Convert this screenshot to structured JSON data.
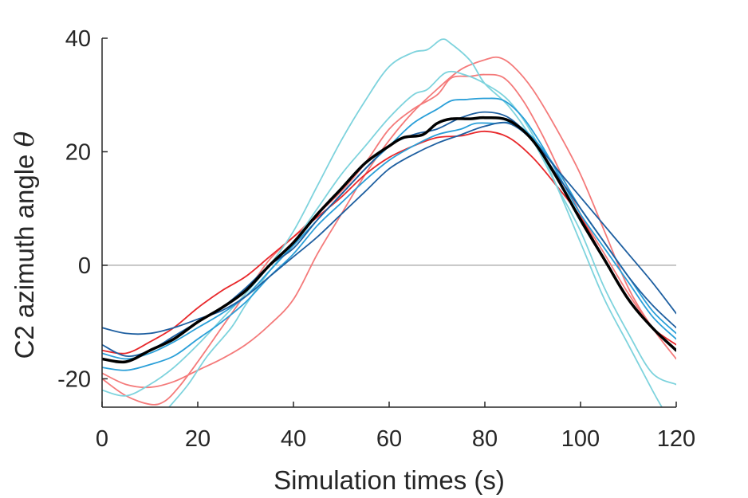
{
  "chart_data": {
    "type": "line",
    "xlabel": "Simulation times (s)",
    "ylabel": "C2 azimuth angle ",
    "ylabel_symbol": "θ",
    "xlim": [
      0,
      120
    ],
    "ylim": [
      -25,
      40
    ],
    "xticks": [
      0,
      20,
      40,
      60,
      80,
      100,
      120
    ],
    "yticks": [
      -20,
      0,
      20,
      40
    ],
    "xtick_labels": [
      "0",
      "20",
      "40",
      "60",
      "80",
      "100",
      "120"
    ],
    "ytick_labels": [
      "-20",
      "0",
      "20",
      "40"
    ],
    "grid": false,
    "zero_line": true,
    "colors": {
      "red": "#e8282b",
      "light_red": "#f47a7a",
      "cyan": "#7ed3dd",
      "blue": "#2a9fd8",
      "dark_blue": "#1e5fa0",
      "mean": "#000000",
      "zero_line": "#b3b3b3",
      "axis": "#262626"
    },
    "series": [
      {
        "color": "#f47a7a",
        "width": 1.8,
        "points": [
          [
            0,
            -19
          ],
          [
            5,
            -21
          ],
          [
            10,
            -21.5
          ],
          [
            15,
            -20.5
          ],
          [
            20,
            -18.5
          ],
          [
            25,
            -16.5
          ],
          [
            30,
            -14
          ],
          [
            35,
            -10.5
          ],
          [
            40,
            -6
          ],
          [
            45,
            2
          ],
          [
            50,
            9
          ],
          [
            55,
            16
          ],
          [
            60,
            22
          ],
          [
            65,
            27
          ],
          [
            70,
            31
          ],
          [
            75,
            34.5
          ],
          [
            80,
            36.2
          ],
          [
            83,
            36.6
          ],
          [
            86,
            35
          ],
          [
            90,
            31
          ],
          [
            95,
            24
          ],
          [
            100,
            16
          ],
          [
            105,
            6
          ],
          [
            110,
            -4
          ],
          [
            115,
            -11
          ],
          [
            120,
            -16.5
          ]
        ]
      },
      {
        "color": "#f47a7a",
        "width": 1.8,
        "points": [
          [
            0,
            -20
          ],
          [
            5,
            -23
          ],
          [
            10,
            -24.5
          ],
          [
            13,
            -24
          ],
          [
            16,
            -21.5
          ],
          [
            20,
            -17
          ],
          [
            25,
            -11
          ],
          [
            30,
            -5
          ],
          [
            35,
            1
          ],
          [
            40,
            5
          ],
          [
            45,
            9
          ],
          [
            50,
            13
          ],
          [
            55,
            18
          ],
          [
            60,
            24
          ],
          [
            65,
            27.5
          ],
          [
            70,
            30
          ],
          [
            73,
            33
          ],
          [
            77,
            33.3
          ],
          [
            80,
            33.6
          ],
          [
            84,
            33
          ],
          [
            88,
            29
          ],
          [
            92,
            23
          ],
          [
            96,
            16
          ],
          [
            100,
            9
          ],
          [
            105,
            2
          ],
          [
            110,
            -5
          ],
          [
            115,
            -11
          ],
          [
            120,
            -15
          ]
        ]
      },
      {
        "color": "#e8282b",
        "width": 1.8,
        "points": [
          [
            0,
            -15
          ],
          [
            5,
            -15.5
          ],
          [
            10,
            -13.5
          ],
          [
            15,
            -11
          ],
          [
            20,
            -7.5
          ],
          [
            25,
            -4.5
          ],
          [
            30,
            -2
          ],
          [
            35,
            1.5
          ],
          [
            40,
            5
          ],
          [
            45,
            8.5
          ],
          [
            50,
            12
          ],
          [
            55,
            16
          ],
          [
            60,
            19
          ],
          [
            65,
            21
          ],
          [
            70,
            22.5
          ],
          [
            75,
            22.8
          ],
          [
            80,
            23.6
          ],
          [
            85,
            22.5
          ],
          [
            90,
            19
          ],
          [
            95,
            14
          ],
          [
            100,
            8.5
          ],
          [
            105,
            1
          ],
          [
            110,
            -6
          ],
          [
            115,
            -11
          ],
          [
            120,
            -14
          ]
        ]
      },
      {
        "color": "#7ed3dd",
        "width": 1.8,
        "points": [
          [
            0,
            -22
          ],
          [
            5,
            -23
          ],
          [
            10,
            -21
          ],
          [
            15,
            -18
          ],
          [
            20,
            -14
          ],
          [
            25,
            -9.5
          ],
          [
            30,
            -5
          ],
          [
            35,
            0
          ],
          [
            40,
            6
          ],
          [
            45,
            14
          ],
          [
            50,
            22
          ],
          [
            55,
            29
          ],
          [
            60,
            35
          ],
          [
            65,
            37.5
          ],
          [
            68,
            38
          ],
          [
            71,
            39.8
          ],
          [
            73,
            39
          ],
          [
            77,
            36
          ],
          [
            80,
            32
          ],
          [
            85,
            28
          ],
          [
            90,
            22
          ],
          [
            95,
            14
          ],
          [
            100,
            6
          ],
          [
            105,
            -4
          ],
          [
            110,
            -12
          ],
          [
            115,
            -19
          ],
          [
            120,
            -21
          ]
        ]
      },
      {
        "color": "#7ed3dd",
        "width": 1.8,
        "points": [
          [
            14,
            -25
          ],
          [
            18,
            -21
          ],
          [
            22,
            -16
          ],
          [
            27,
            -11
          ],
          [
            30,
            -7
          ],
          [
            35,
            -1
          ],
          [
            40,
            4
          ],
          [
            45,
            10
          ],
          [
            50,
            16
          ],
          [
            55,
            21
          ],
          [
            60,
            26
          ],
          [
            65,
            30
          ],
          [
            68,
            31
          ],
          [
            72,
            34
          ],
          [
            76,
            33.5
          ],
          [
            80,
            32
          ],
          [
            85,
            29
          ],
          [
            90,
            23
          ],
          [
            95,
            14
          ],
          [
            100,
            4
          ],
          [
            105,
            -6
          ],
          [
            110,
            -14
          ],
          [
            115,
            -22
          ],
          [
            117,
            -25
          ]
        ]
      },
      {
        "color": "#2a9fd8",
        "width": 1.8,
        "points": [
          [
            0,
            -15.5
          ],
          [
            5,
            -16.5
          ],
          [
            10,
            -15.5
          ],
          [
            15,
            -13.5
          ],
          [
            20,
            -11
          ],
          [
            25,
            -8.5
          ],
          [
            30,
            -5.5
          ],
          [
            35,
            -1
          ],
          [
            40,
            3.5
          ],
          [
            45,
            8
          ],
          [
            50,
            12.5
          ],
          [
            55,
            17
          ],
          [
            60,
            21
          ],
          [
            65,
            25
          ],
          [
            70,
            27.5
          ],
          [
            73,
            29
          ],
          [
            76,
            29.2
          ],
          [
            80,
            29.4
          ],
          [
            84,
            29
          ],
          [
            88,
            26
          ],
          [
            92,
            21
          ],
          [
            96,
            15
          ],
          [
            100,
            9
          ],
          [
            105,
            3
          ],
          [
            110,
            -3
          ],
          [
            115,
            -9
          ],
          [
            120,
            -13
          ]
        ]
      },
      {
        "color": "#2a9fd8",
        "width": 1.8,
        "points": [
          [
            0,
            -18
          ],
          [
            5,
            -18.5
          ],
          [
            10,
            -17.5
          ],
          [
            15,
            -16
          ],
          [
            20,
            -13
          ],
          [
            25,
            -10
          ],
          [
            30,
            -6.5
          ],
          [
            35,
            -2
          ],
          [
            40,
            2
          ],
          [
            45,
            7
          ],
          [
            50,
            11
          ],
          [
            55,
            15
          ],
          [
            60,
            18.5
          ],
          [
            65,
            21
          ],
          [
            70,
            23
          ],
          [
            75,
            24
          ],
          [
            78,
            25
          ],
          [
            82,
            25
          ],
          [
            86,
            25
          ],
          [
            90,
            22.5
          ],
          [
            95,
            17
          ],
          [
            100,
            10
          ],
          [
            105,
            4
          ],
          [
            110,
            -2
          ],
          [
            115,
            -8
          ],
          [
            120,
            -12
          ]
        ]
      },
      {
        "color": "#1e5fa0",
        "width": 1.8,
        "points": [
          [
            0,
            -11
          ],
          [
            5,
            -12
          ],
          [
            10,
            -12
          ],
          [
            15,
            -11
          ],
          [
            20,
            -9.5
          ],
          [
            25,
            -8
          ],
          [
            30,
            -5.5
          ],
          [
            35,
            -2
          ],
          [
            40,
            1.5
          ],
          [
            45,
            5
          ],
          [
            50,
            9
          ],
          [
            55,
            13
          ],
          [
            60,
            17
          ],
          [
            65,
            19.5
          ],
          [
            70,
            21.5
          ],
          [
            75,
            23
          ],
          [
            80,
            24.5
          ],
          [
            85,
            25
          ],
          [
            90,
            22
          ],
          [
            95,
            17
          ],
          [
            100,
            12
          ],
          [
            105,
            7
          ],
          [
            110,
            2
          ],
          [
            115,
            -3
          ],
          [
            120,
            -8.5
          ]
        ]
      },
      {
        "color": "#1e5fa0",
        "width": 1.8,
        "points": [
          [
            0,
            -14
          ],
          [
            5,
            -16
          ],
          [
            10,
            -15
          ],
          [
            15,
            -12.5
          ],
          [
            20,
            -10
          ],
          [
            25,
            -7.5
          ],
          [
            30,
            -4
          ],
          [
            35,
            0
          ],
          [
            40,
            3
          ],
          [
            45,
            8
          ],
          [
            50,
            12.5
          ],
          [
            55,
            17
          ],
          [
            60,
            21
          ],
          [
            65,
            23
          ],
          [
            70,
            24
          ],
          [
            75,
            26
          ],
          [
            80,
            27
          ],
          [
            85,
            26
          ],
          [
            90,
            22
          ],
          [
            95,
            16
          ],
          [
            100,
            10
          ],
          [
            105,
            4
          ],
          [
            110,
            -2
          ],
          [
            115,
            -7
          ],
          [
            120,
            -11
          ]
        ]
      },
      {
        "color": "#000000",
        "width": 3.5,
        "points": [
          [
            0,
            -16.5
          ],
          [
            5,
            -17
          ],
          [
            10,
            -15
          ],
          [
            15,
            -13
          ],
          [
            20,
            -10
          ],
          [
            25,
            -7.5
          ],
          [
            30,
            -4.5
          ],
          [
            35,
            0
          ],
          [
            40,
            4
          ],
          [
            45,
            9
          ],
          [
            50,
            13.5
          ],
          [
            55,
            18
          ],
          [
            60,
            21
          ],
          [
            63,
            22.5
          ],
          [
            67,
            23
          ],
          [
            70,
            25
          ],
          [
            73,
            25.8
          ],
          [
            77,
            25.8
          ],
          [
            80,
            26
          ],
          [
            85,
            25.5
          ],
          [
            90,
            22
          ],
          [
            95,
            15.5
          ],
          [
            100,
            8
          ],
          [
            105,
            1
          ],
          [
            110,
            -6
          ],
          [
            115,
            -11
          ],
          [
            120,
            -15
          ]
        ]
      }
    ]
  }
}
